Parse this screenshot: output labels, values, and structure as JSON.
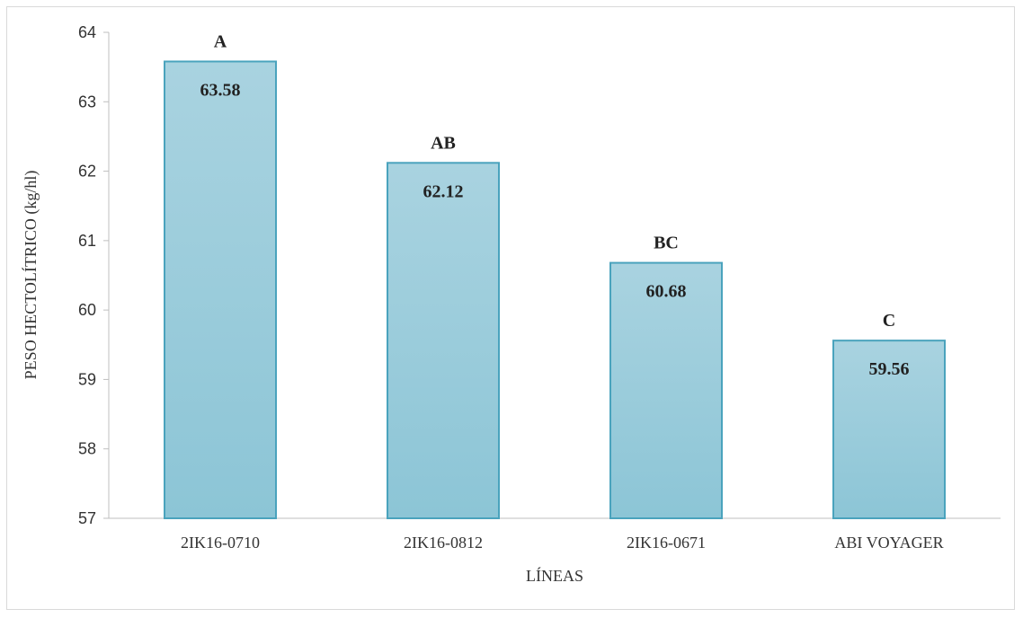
{
  "chart_data": {
    "type": "bar",
    "categories": [
      "2IK16-0710",
      "2IK16-0812",
      "2IK16-0671",
      "ABI VOYAGER"
    ],
    "values": [
      63.58,
      62.12,
      60.68,
      59.56
    ],
    "value_labels": [
      "63.58",
      "62.12",
      "60.68",
      "59.56"
    ],
    "group_labels": [
      "A",
      "AB",
      "BC",
      "C"
    ],
    "title": "",
    "xlabel": "LÍNEAS",
    "ylabel": "PESO HECTOLÍTRICO  (kg/hl)",
    "ylim": [
      57,
      64
    ],
    "yticks": [
      57,
      58,
      59,
      60,
      61,
      62,
      63,
      64
    ],
    "grid": false,
    "legend": "none",
    "colors": {
      "bar_fill_top": "#a9d3e0",
      "bar_fill_bottom": "#8cc5d6",
      "bar_stroke": "#4aa3bd",
      "axis": "#bfbfbf"
    }
  }
}
